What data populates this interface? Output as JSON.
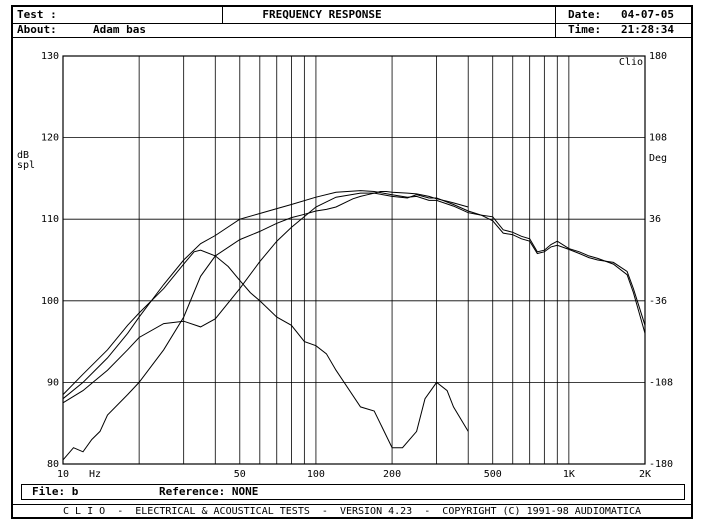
{
  "header": {
    "test_label": "Test :",
    "about_label": "About:",
    "about_value": "Adam bas",
    "title": "FREQUENCY RESPONSE",
    "date_label": "Date:",
    "date_value": "04-07-05",
    "time_label": "Time:",
    "time_value": "21:28:34"
  },
  "footer": {
    "file_label": "File: b",
    "reference_label": "Reference: NONE",
    "credits": "C L I O  -  ELECTRICAL & ACOUSTICAL TESTS  -  VERSION 4.23  -  COPYRIGHT (C) 1991-98 AUDIOMATICA"
  },
  "chart_data": {
    "type": "line",
    "logo": "Clio",
    "xscale": "log",
    "xlim": [
      10,
      2000
    ],
    "ylim": [
      80,
      130
    ],
    "y2lim": [
      -180,
      180
    ],
    "grid": true,
    "xlabel_unit": "Hz",
    "ylabel": "dB spl",
    "y2label": "Deg",
    "x_tick_labels": [
      {
        "value": 10,
        "label": "10"
      },
      {
        "value": 50,
        "label": "50"
      },
      {
        "value": 100,
        "label": "100"
      },
      {
        "value": 200,
        "label": "200"
      },
      {
        "value": 500,
        "label": "500"
      },
      {
        "value": 1000,
        "label": "1K"
      },
      {
        "value": 2000,
        "label": "2K"
      }
    ],
    "x_gridlines": [
      20,
      30,
      40,
      50,
      60,
      70,
      80,
      90,
      100,
      200,
      300,
      400,
      500,
      600,
      700,
      800,
      900,
      1000
    ],
    "y_ticks": [
      80,
      90,
      100,
      110,
      120,
      130
    ],
    "y2_ticks": [
      -180,
      -108,
      -36,
      36,
      108,
      180
    ],
    "series": [
      {
        "x": [
          10,
          12,
          15,
          18,
          20,
          25,
          30,
          35,
          40,
          50,
          60,
          70,
          80,
          100,
          120,
          150,
          170,
          200,
          230,
          250,
          280,
          300,
          350,
          400,
          450,
          500,
          550,
          600,
          650,
          700,
          750,
          800,
          850,
          900,
          1000,
          1100,
          1200,
          1300,
          1500,
          1700,
          1800,
          2000
        ],
        "y": [
          88,
          90,
          93,
          96,
          98,
          102,
          105,
          107,
          108,
          110,
          110.7,
          111.3,
          111.8,
          112.7,
          113.3,
          113.5,
          113.4,
          113,
          112.7,
          112.8,
          112.3,
          112.3,
          111.6,
          110.8,
          110.5,
          109.8,
          108.3,
          108.1,
          107.6,
          107.3,
          105.8,
          106,
          106.6,
          106.8,
          106.3,
          105.8,
          105.3,
          105,
          104.7,
          103.6,
          101.5,
          97
        ]
      },
      {
        "x": [
          10,
          12,
          15,
          18,
          20,
          25,
          30,
          35,
          40,
          50,
          60,
          70,
          80,
          100,
          120,
          150,
          170,
          200,
          230,
          250,
          280,
          300,
          350,
          400,
          450,
          500,
          550,
          600,
          650,
          700,
          750,
          800,
          850,
          900,
          1000,
          1100,
          1200,
          1300,
          1500,
          1700,
          1800,
          2000
        ],
        "y": [
          87.5,
          89,
          91.5,
          94,
          95.5,
          97.2,
          97.5,
          96.8,
          97.8,
          101.5,
          104.8,
          107.3,
          109,
          111.5,
          112.7,
          113.2,
          113.2,
          112.8,
          112.6,
          113,
          112.6,
          112.6,
          111.8,
          111,
          110.5,
          110.3,
          108.7,
          108.4,
          107.9,
          107.6,
          106,
          106.2,
          106.9,
          107.3,
          106.4,
          106,
          105.5,
          105.2,
          104.5,
          103.2,
          101,
          96
        ]
      },
      {
        "x": [
          10,
          11,
          12,
          13,
          14,
          15,
          18,
          20,
          25,
          30,
          35,
          40,
          50,
          60,
          70,
          80,
          90,
          100,
          110,
          120,
          140,
          150,
          160,
          170,
          180,
          190,
          200,
          230,
          250,
          280,
          300,
          330,
          350,
          400
        ],
        "y": [
          80.5,
          82,
          81.5,
          83,
          84,
          86,
          88.5,
          90,
          94,
          98,
          103,
          105.5,
          107.5,
          108.5,
          109.5,
          110.2,
          110.6,
          111,
          111.2,
          111.5,
          112.5,
          112.8,
          113,
          113.2,
          113.4,
          113.4,
          113.3,
          113.2,
          113.1,
          112.8,
          112.5,
          112.2,
          112,
          111.5
        ]
      },
      {
        "x": [
          10,
          12,
          15,
          18,
          20,
          25,
          30,
          33,
          35,
          40,
          45,
          50,
          55,
          60,
          70,
          80,
          90,
          100,
          110,
          120,
          150,
          170,
          200,
          220,
          250,
          270,
          300,
          330,
          350,
          400
        ],
        "y": [
          88.5,
          91,
          94,
          97,
          98.5,
          101.5,
          104.5,
          106,
          106.2,
          105.5,
          104.2,
          102.5,
          101,
          100,
          98,
          97,
          95,
          94.5,
          93.5,
          91.5,
          87,
          86.5,
          82,
          82,
          84,
          88,
          90,
          89,
          87,
          84
        ]
      }
    ]
  }
}
